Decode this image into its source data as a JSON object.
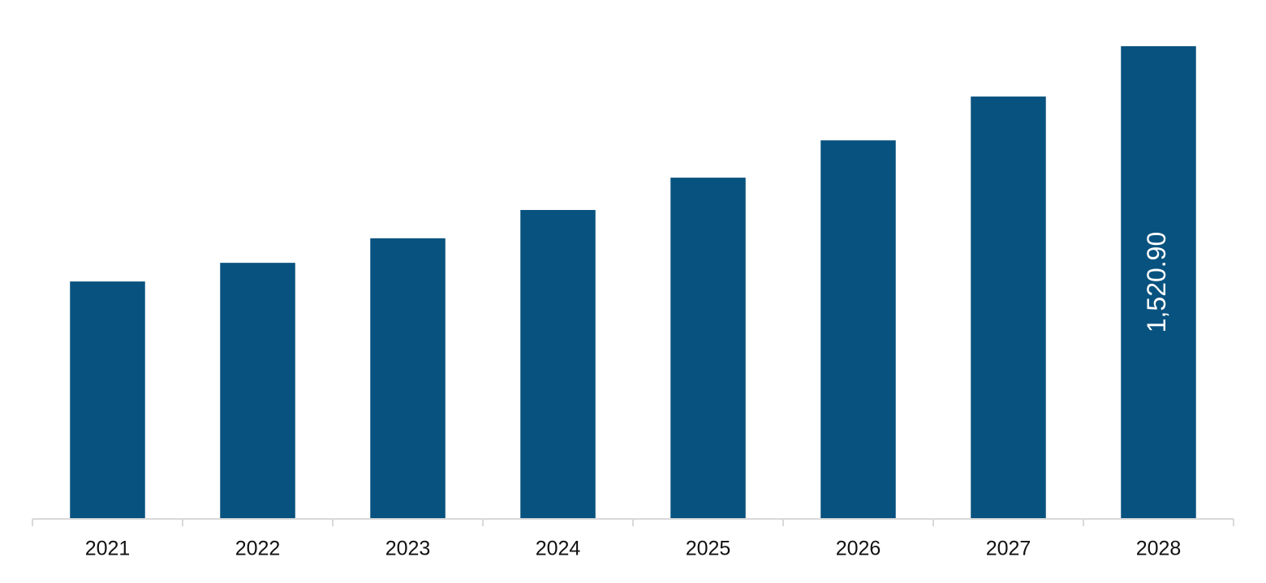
{
  "chart_data": {
    "type": "bar",
    "categories": [
      "2021",
      "2022",
      "2023",
      "2024",
      "2025",
      "2026",
      "2027",
      "2028"
    ],
    "values": [
      764,
      824,
      903,
      994,
      1098,
      1218,
      1359,
      1520.9
    ],
    "value_labels": [
      null,
      null,
      null,
      null,
      null,
      null,
      null,
      "1,520.90"
    ],
    "color": "#08527f"
  }
}
